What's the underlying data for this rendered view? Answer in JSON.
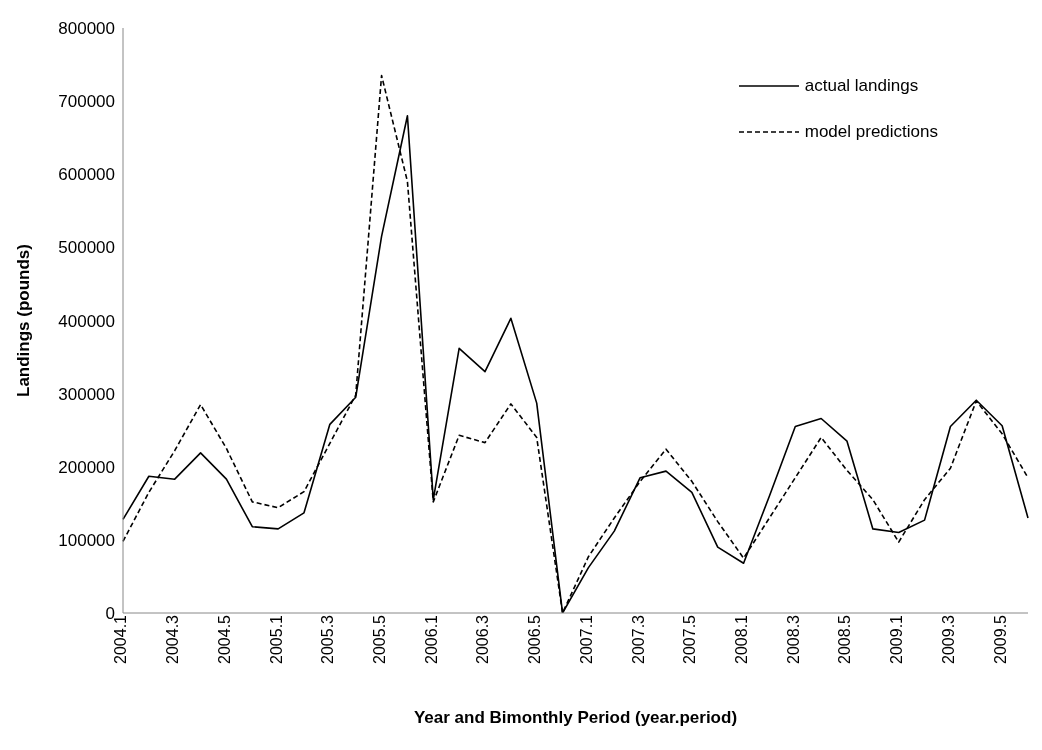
{
  "chart_data": {
    "type": "line",
    "xlabel": "Year and Bimonthly Period (year.period)",
    "ylabel": "Landings (pounds)",
    "categories": [
      "2004.1",
      null,
      "2004.3",
      null,
      "2004.5",
      null,
      "2005.1",
      null,
      "2005.3",
      null,
      "2005.5",
      null,
      "2006.1",
      null,
      "2006.3",
      null,
      "2006.5",
      null,
      "2007.1",
      null,
      "2007.3",
      null,
      "2007.5",
      null,
      "2008.1",
      null,
      "2008.3",
      null,
      "2008.5",
      null,
      "2009.1",
      null,
      "2009.3",
      null,
      "2009.5",
      null
    ],
    "series": [
      {
        "name": "actual landings",
        "color": "#000000",
        "line_style": "solid",
        "values": [
          128000,
          187000,
          183000,
          219000,
          183000,
          118000,
          115000,
          137000,
          258000,
          295000,
          515000,
          680000,
          155000,
          362000,
          330000,
          403000,
          287000,
          0,
          62000,
          112000,
          185000,
          194000,
          165000,
          90000,
          68000,
          160000,
          255000,
          266000,
          235000,
          115000,
          110000,
          127000,
          255000,
          291000,
          256000,
          130000
        ]
      },
      {
        "name": "model predictions",
        "color": "#000000",
        "line_style": "dashed",
        "values": [
          98000,
          165000,
          222000,
          285000,
          225000,
          152000,
          144000,
          166000,
          232000,
          298000,
          735000,
          590000,
          152000,
          243000,
          233000,
          286000,
          240000,
          0,
          77000,
          130000,
          180000,
          224000,
          180000,
          125000,
          75000,
          130000,
          185000,
          240000,
          195000,
          155000,
          97000,
          155000,
          198000,
          290000,
          245000,
          185000
        ]
      }
    ],
    "ylim": [
      0,
      800000
    ],
    "yticks": [
      0,
      100000,
      200000,
      300000,
      400000,
      500000,
      600000,
      700000,
      800000
    ],
    "legend": "top right",
    "marker": "none"
  }
}
